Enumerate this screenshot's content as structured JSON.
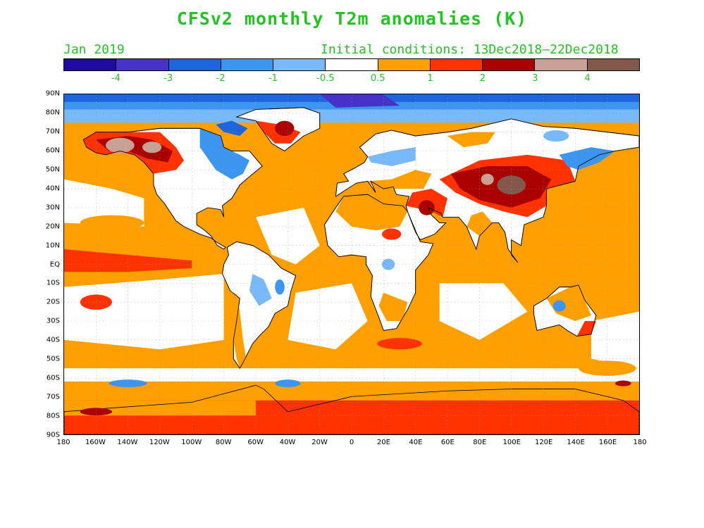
{
  "title": "CFSv2 monthly T2m anomalies (K)",
  "month_label": "Jan 2019",
  "init_label": "Initial conditions: 13Dec2018–22Dec2018",
  "colorbar": {
    "colors": [
      "#1e0aa0",
      "#4632c8",
      "#1e64dc",
      "#3c96f0",
      "#78b9fa",
      "#ffffff",
      "#ffa000",
      "#ff3200",
      "#aa0000",
      "#c8a096",
      "#82584a"
    ],
    "labels": [
      "-4",
      "-3",
      "-2",
      "-1",
      "-0.5",
      "0.5",
      "1",
      "2",
      "3",
      "4"
    ]
  },
  "lat_labels": [
    "90N",
    "80N",
    "70N",
    "60N",
    "50N",
    "40N",
    "30N",
    "20N",
    "10N",
    "EQ",
    "10S",
    "20S",
    "30S",
    "40S",
    "50S",
    "60S",
    "70S",
    "80S",
    "90S"
  ],
  "lon_labels": [
    "180",
    "160W",
    "140W",
    "120W",
    "100W",
    "80W",
    "60W",
    "40W",
    "20W",
    "0",
    "20E",
    "40E",
    "60E",
    "80E",
    "100E",
    "120E",
    "140E",
    "160E",
    "180"
  ],
  "map": {
    "ocean_color": "#ffa000",
    "land_neutral_color": "#ffffff",
    "coast_color": "#000000",
    "grid_color": "#999999"
  }
}
